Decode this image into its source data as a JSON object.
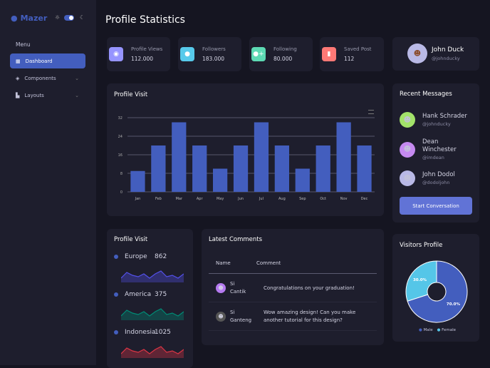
{
  "sidebar": {
    "logo": "Mazer",
    "menu_title": "Menu",
    "items": [
      {
        "label": "Dashboard",
        "icon": "grid-icon",
        "active": true
      },
      {
        "label": "Components",
        "icon": "stack-icon"
      },
      {
        "label": "Layouts",
        "icon": "layout-icon"
      }
    ]
  },
  "header": {
    "title": "Profile Statistics"
  },
  "stats": [
    {
      "label": "Profile Views",
      "value": "112.000",
      "color": "#9694ff",
      "icon": "eye-icon"
    },
    {
      "label": "Followers",
      "value": "183.000",
      "color": "#57caeb",
      "icon": "user-icon"
    },
    {
      "label": "Following",
      "value": "80.000",
      "color": "#5ddab4",
      "icon": "user-plus-icon"
    },
    {
      "label": "Saved Post",
      "value": "112",
      "color": "#ff7976",
      "icon": "bookmark-icon"
    }
  ],
  "profile": {
    "name": "John Duck",
    "handle": "@johnducky"
  },
  "chart_data": [
    {
      "type": "bar",
      "title": "Profile Visit",
      "categories": [
        "Jan",
        "Feb",
        "Mar",
        "Apr",
        "May",
        "Jun",
        "Jul",
        "Aug",
        "Sep",
        "Oct",
        "Nov",
        "Dec"
      ],
      "values": [
        9,
        20,
        30,
        20,
        10,
        20,
        30,
        20,
        10,
        20,
        30,
        20
      ],
      "ylim": [
        0,
        32
      ],
      "yticks": [
        "0",
        "8",
        "16",
        "24",
        "32"
      ],
      "grid": true,
      "color": "#435ebe"
    },
    {
      "type": "pie",
      "title": "Visitors Profile",
      "categories": [
        "Male",
        "Female"
      ],
      "values": [
        70,
        30
      ],
      "labels": [
        "70.0%",
        "30.0%"
      ],
      "colors": [
        "#435ebe",
        "#55c6e8"
      ],
      "legend": "bottom"
    }
  ],
  "regions": {
    "title": "Profile Visit",
    "items": [
      {
        "name": "Europe",
        "value": "862",
        "color": "#5350e9",
        "spark": [
          2,
          6,
          4,
          3,
          5,
          2,
          5,
          7,
          3,
          4,
          2,
          5
        ]
      },
      {
        "name": "America",
        "value": "375",
        "color": "#008b75",
        "spark": [
          2,
          6,
          4,
          3,
          5,
          2,
          5,
          7,
          3,
          4,
          2,
          5
        ]
      },
      {
        "name": "Indonesia",
        "value": "1025",
        "color": "#dc3545",
        "spark": [
          2,
          6,
          4,
          3,
          5,
          2,
          5,
          7,
          3,
          4,
          2,
          5
        ]
      }
    ]
  },
  "messages": {
    "title": "Recent Messages",
    "items": [
      {
        "name": "Hank Schrader",
        "handle": "@johnducky",
        "color": "#a3e36a"
      },
      {
        "name": "Dean Winchester",
        "handle": "@imdean",
        "color": "#c58af0"
      },
      {
        "name": "John Dodol",
        "handle": "@dodoljohn",
        "color": "#b9b9e6"
      }
    ],
    "button": "Start Conversation"
  },
  "comments": {
    "title": "Latest Comments",
    "columns": [
      "Name",
      "Comment"
    ],
    "rows": [
      {
        "name": "Si Cantik",
        "comment": "Congratulations on your graduation!",
        "color": "#b57af0"
      },
      {
        "name": "Si Ganteng",
        "comment": "Wow amazing design! Can you make another tutorial for this design?",
        "color": "#555"
      }
    ]
  }
}
